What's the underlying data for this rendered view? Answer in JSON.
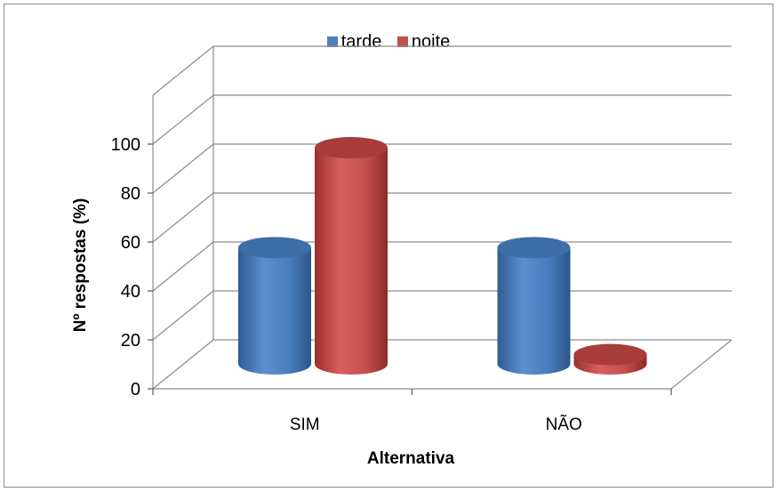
{
  "chart_data": {
    "type": "bar",
    "title": "",
    "xlabel": "Alternativa",
    "ylabel": "Nº respostas (%)",
    "categories": [
      "SIM",
      "NÃO"
    ],
    "series": [
      {
        "name": "tarde",
        "values": [
          50,
          50
        ],
        "color": "#4f81bd"
      },
      {
        "name": "noite",
        "values": [
          93,
          4
        ],
        "color": "#c0504d"
      }
    ],
    "ylim": [
      0,
      100
    ],
    "yticks": [
      0,
      20,
      40,
      60,
      80,
      100
    ],
    "grid": true,
    "legend": "top"
  }
}
